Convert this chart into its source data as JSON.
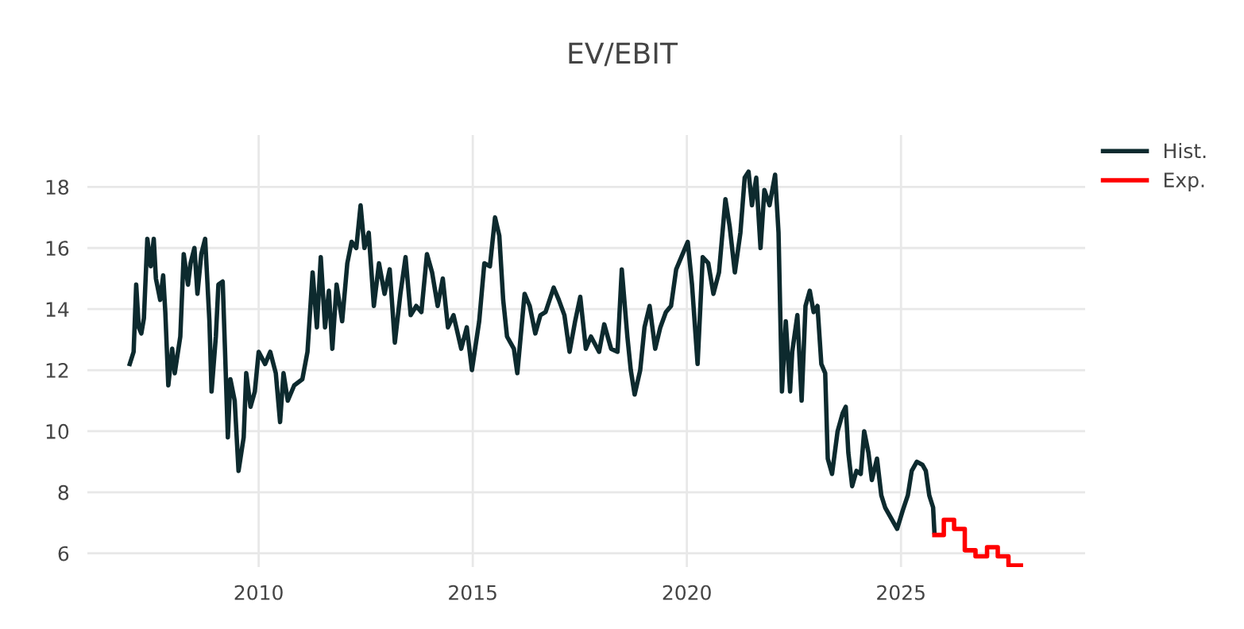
{
  "chart_data": {
    "type": "line",
    "title": "EV/EBIT",
    "xlim": [
      2006,
      2029.3
    ],
    "xticks": [
      2010,
      2015,
      2020,
      2025
    ],
    "ylim": [
      5.55,
      19.7
    ],
    "yticks": [
      6,
      8,
      10,
      12,
      14,
      16,
      18
    ],
    "grid": true,
    "legend": "top right",
    "line_style": "solid",
    "marker": "none",
    "series": [
      {
        "name": "Hist.",
        "color": "#0d2a2e",
        "x": [
          2006.99,
          2007.08,
          2007.14,
          2007.2,
          2007.26,
          2007.32,
          2007.4,
          2007.48,
          2007.55,
          2007.6,
          2007.7,
          2007.77,
          2007.82,
          2007.89,
          2007.98,
          2008.04,
          2008.17,
          2008.25,
          2008.35,
          2008.41,
          2008.5,
          2008.57,
          2008.66,
          2008.75,
          2008.85,
          2008.9,
          2009.0,
          2009.06,
          2009.16,
          2009.22,
          2009.28,
          2009.34,
          2009.44,
          2009.53,
          2009.65,
          2009.71,
          2009.81,
          2009.91,
          2010.0,
          2010.15,
          2010.27,
          2010.4,
          2010.5,
          2010.58,
          2010.68,
          2010.83,
          2011.02,
          2011.14,
          2011.26,
          2011.36,
          2011.45,
          2011.55,
          2011.64,
          2011.72,
          2011.82,
          2011.95,
          2012.07,
          2012.17,
          2012.28,
          2012.38,
          2012.47,
          2012.57,
          2012.69,
          2012.81,
          2012.94,
          2013.06,
          2013.18,
          2013.31,
          2013.43,
          2013.55,
          2013.68,
          2013.8,
          2013.93,
          2014.05,
          2014.18,
          2014.3,
          2014.42,
          2014.55,
          2014.73,
          2014.86,
          2014.98,
          2015.15,
          2015.27,
          2015.4,
          2015.52,
          2015.62,
          2015.71,
          2015.8,
          2015.96,
          2016.04,
          2016.21,
          2016.33,
          2016.46,
          2016.58,
          2016.7,
          2016.89,
          2017.01,
          2017.14,
          2017.26,
          2017.39,
          2017.51,
          2017.64,
          2017.76,
          2017.95,
          2018.07,
          2018.23,
          2018.38,
          2018.48,
          2018.61,
          2018.69,
          2018.78,
          2018.91,
          2019.01,
          2019.13,
          2019.26,
          2019.38,
          2019.51,
          2019.63,
          2019.75,
          2019.9,
          2020.02,
          2020.12,
          2020.25,
          2020.37,
          2020.5,
          2020.62,
          2020.75,
          2020.9,
          2021.0,
          2021.12,
          2021.25,
          2021.35,
          2021.44,
          2021.52,
          2021.62,
          2021.72,
          2021.81,
          2021.93,
          2022.06,
          2022.14,
          2022.22,
          2022.31,
          2022.41,
          2022.46,
          2022.58,
          2022.68,
          2022.77,
          2022.87,
          2022.96,
          2023.05,
          2023.14,
          2023.23,
          2023.29,
          2023.39,
          2023.52,
          2023.64,
          2023.71,
          2023.77,
          2023.86,
          2023.96,
          2024.06,
          2024.14,
          2024.24,
          2024.32,
          2024.44,
          2024.54,
          2024.63,
          2024.75,
          2024.91,
          2025.04,
          2025.16,
          2025.25,
          2025.37,
          2025.5,
          2025.58,
          2025.66,
          2025.75,
          2025.78
        ],
        "values": [
          12.2,
          12.6,
          14.8,
          13.4,
          13.2,
          13.7,
          16.3,
          15.4,
          16.3,
          15.0,
          14.3,
          15.1,
          13.9,
          11.5,
          12.7,
          11.9,
          13.1,
          15.8,
          14.8,
          15.5,
          16.0,
          14.5,
          15.8,
          16.3,
          13.6,
          11.3,
          13.1,
          14.8,
          14.9,
          12.4,
          9.8,
          11.7,
          11.0,
          8.7,
          9.8,
          11.9,
          10.8,
          11.3,
          12.6,
          12.2,
          12.6,
          11.9,
          10.3,
          11.9,
          11.0,
          11.5,
          11.7,
          12.6,
          15.2,
          13.4,
          15.7,
          13.4,
          14.6,
          12.7,
          14.8,
          13.6,
          15.5,
          16.2,
          16.0,
          17.4,
          16.0,
          16.5,
          14.1,
          15.5,
          14.5,
          15.3,
          12.9,
          14.5,
          15.7,
          13.8,
          14.1,
          13.9,
          15.8,
          15.2,
          14.1,
          15.0,
          13.4,
          13.8,
          12.7,
          13.4,
          12.0,
          13.6,
          15.5,
          15.4,
          17.0,
          16.4,
          14.3,
          13.1,
          12.7,
          11.9,
          14.5,
          14.1,
          13.2,
          13.8,
          13.9,
          14.7,
          14.3,
          13.8,
          12.6,
          13.6,
          14.4,
          12.7,
          13.1,
          12.6,
          13.5,
          12.7,
          12.6,
          15.3,
          13.1,
          12.0,
          11.2,
          12.0,
          13.4,
          14.1,
          12.7,
          13.4,
          13.9,
          14.1,
          15.3,
          15.8,
          16.2,
          14.8,
          12.2,
          15.7,
          15.5,
          14.5,
          15.2,
          17.6,
          16.7,
          15.2,
          16.5,
          18.3,
          18.5,
          17.4,
          18.3,
          16.0,
          17.9,
          17.4,
          18.4,
          16.5,
          11.3,
          13.6,
          11.3,
          12.6,
          13.8,
          11.0,
          14.1,
          14.6,
          13.9,
          14.1,
          12.2,
          11.9,
          9.1,
          8.6,
          10.0,
          10.6,
          10.8,
          9.3,
          8.2,
          8.7,
          8.6,
          10.0,
          9.3,
          8.4,
          9.1,
          7.9,
          7.5,
          7.2,
          6.8,
          7.4,
          7.9,
          8.7,
          9.0,
          8.9,
          8.7,
          7.9,
          7.5,
          6.7
        ]
      },
      {
        "name": "Exp.",
        "type": "step",
        "color": "#ff0000",
        "x": [
          2025.78,
          2026.0,
          2026.24,
          2026.49,
          2026.74,
          2027.01,
          2027.26,
          2027.51,
          2027.8
        ],
        "values": [
          6.6,
          7.1,
          6.8,
          6.1,
          5.9,
          6.2,
          5.9,
          5.6,
          5.6
        ]
      }
    ]
  }
}
